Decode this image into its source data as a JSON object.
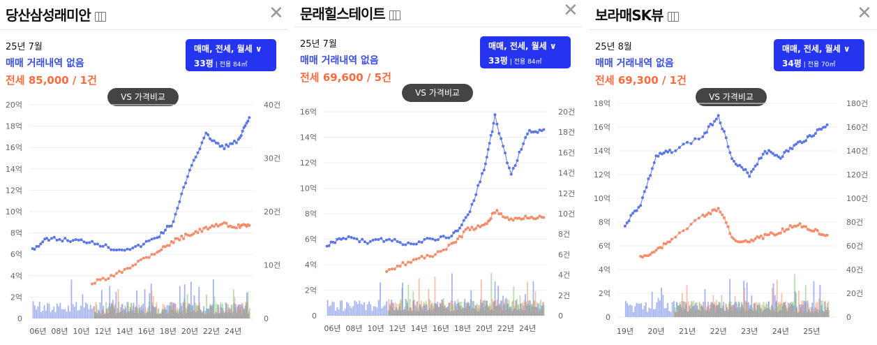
{
  "panels": [
    {
      "title": "당산삼성래미안",
      "date": "25년 7월",
      "status": "매매 거래내역 없음",
      "jeonse": "전세 85,000 / 1건",
      "type_selector": {
        "label": "매매, 전세, 월세 ∨",
        "pyeong": "33평",
        "area": "| 전용 84㎡"
      },
      "compare_label": "VS 가격비교",
      "left_axis": [
        "20억",
        "18억",
        "16억",
        "14억",
        "12억",
        "10억",
        "8억",
        "6억",
        "4억",
        "2억",
        "0"
      ],
      "right_axis": [
        "40건",
        "30건",
        "20건",
        "10건",
        "0"
      ],
      "x_ticks": [
        "06년",
        "08년",
        "10년",
        "12년",
        "14년",
        "16년",
        "18년",
        "20년",
        "22년",
        "24년"
      ]
    },
    {
      "title": "문래힐스테이트",
      "date": "25년 7월",
      "status": "매매 거래내역 없음",
      "jeonse": "전세 69,600 / 5건",
      "type_selector": {
        "label": "매매, 전세, 월세 ∨",
        "pyeong": "33평",
        "area": "| 전용 84㎡"
      },
      "compare_label": "VS 가격비교",
      "left_axis": [
        "16억",
        "14억",
        "12억",
        "10억",
        "8억",
        "6억",
        "4억",
        "2억",
        "0"
      ],
      "right_axis": [
        "20건",
        "18건",
        "16건",
        "14건",
        "12건",
        "10건",
        "8건",
        "6건",
        "4건",
        "2건",
        "0"
      ],
      "x_ticks": [
        "06년",
        "08년",
        "10년",
        "12년",
        "14년",
        "16년",
        "18년",
        "20년",
        "22년",
        "24년"
      ]
    },
    {
      "title": "보라매SK뷰",
      "date": "25년 8월",
      "status": "매매 거래내역 없음",
      "jeonse": "전세 69,300 / 1건",
      "type_selector": {
        "label": "매매, 전세, 월세 ∨",
        "pyeong": "34평",
        "area": "| 전용 70㎡"
      },
      "compare_label": "VS 가격비교",
      "left_axis": [
        "18억",
        "16억",
        "14억",
        "12억",
        "10억",
        "8억",
        "6억",
        "4억",
        "2억",
        "0"
      ],
      "right_axis": [
        "180건",
        "160건",
        "140건",
        "120건",
        "100건",
        "80건",
        "60건",
        "40건",
        "20건",
        "0"
      ],
      "x_ticks": [
        "19년",
        "20년",
        "21년",
        "22년",
        "23년",
        "24년",
        "25년"
      ]
    }
  ],
  "colors": {
    "sale": "#5b76e6",
    "jeonse": "#f58c6a",
    "monthly": "#7cc36b",
    "button": "#2535ef"
  },
  "chart_data": [
    {
      "type": "line",
      "title": "",
      "y_left_unit": "억",
      "y_right_unit": "건",
      "ylim": [
        0,
        20
      ],
      "y2lim": [
        0,
        40
      ],
      "x": [
        2005.5,
        2007,
        2009,
        2011,
        2013,
        2015,
        2017,
        2018.5,
        2020,
        2021.5,
        2023,
        2024.5,
        2025.5
      ],
      "series": [
        {
          "values": [
            6.5,
            7.5,
            7.3,
            7.2,
            6.5,
            6.6,
            7.6,
            9.0,
            14.0,
            17.2,
            16.0,
            16.6,
            18.8
          ]
        },
        {
          "values": [
            null,
            null,
            null,
            3.3,
            4.0,
            5.2,
            6.3,
            7.2,
            7.9,
            8.4,
            8.8,
            8.6,
            8.7
          ]
        }
      ]
    },
    {
      "type": "line",
      "title": "",
      "y_left_unit": "억",
      "y_right_unit": "건",
      "ylim": [
        0,
        16
      ],
      "y2lim": [
        0,
        20
      ],
      "x": [
        2005.5,
        2007,
        2009,
        2011,
        2013,
        2015,
        2017,
        2018.5,
        2020,
        2021,
        2022.5,
        2024,
        2025.5
      ],
      "series": [
        {
          "values": [
            5.5,
            6.2,
            5.8,
            6.0,
            5.6,
            6.0,
            6.2,
            7.8,
            11.5,
            15.6,
            11.0,
            14.4,
            14.6
          ]
        },
        {
          "values": [
            null,
            null,
            null,
            3.6,
            4.2,
            4.7,
            5.5,
            6.8,
            7.0,
            8.2,
            7.5,
            7.8,
            7.7
          ]
        }
      ]
    },
    {
      "type": "line",
      "title": "",
      "y_left_unit": "억",
      "y_right_unit": "건",
      "ylim": [
        0,
        18
      ],
      "y2lim": [
        0,
        180
      ],
      "x": [
        2019.0,
        2019.5,
        2020,
        2020.5,
        2021.5,
        2022,
        2022.5,
        2023,
        2023.5,
        2024,
        2024.5,
        2025,
        2025.5
      ],
      "series": [
        {
          "values": [
            7.8,
            9.5,
            13.5,
            14.0,
            15.2,
            17.0,
            13.0,
            12.0,
            14.0,
            13.5,
            14.5,
            15.3,
            16.2
          ]
        },
        {
          "values": [
            null,
            5.0,
            5.6,
            6.5,
            8.5,
            9.2,
            6.5,
            6.4,
            6.8,
            7.2,
            7.8,
            7.4,
            6.9
          ]
        }
      ]
    }
  ]
}
